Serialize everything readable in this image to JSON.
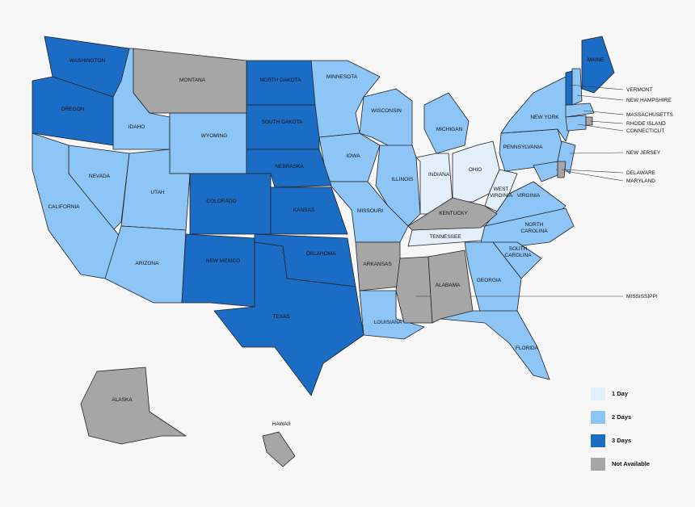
{
  "legend": [
    {
      "label": "1 Day",
      "color": "#e3f0fc",
      "states": [
        "INDIANA",
        "OHIO",
        "WEST\nVIRGINIA",
        "TENNESSEE"
      ]
    },
    {
      "label": "2 Days",
      "color": "#8ec5f7",
      "states": [
        "IDAHO",
        "WYOMING",
        "MINNESOTA",
        "WISCONSIN",
        "MICHIGAN",
        "IOWA",
        "ILLINOIS",
        "PENNSYLVANIA",
        "NEW YORK",
        "NEVADA",
        "CALIFORNIA",
        "UTAH",
        "MISSOURI",
        "VIRGINIA",
        "NORTH\nCAROLINA",
        "ARIZONA",
        "LOUISIANA",
        "GEORGIA",
        "SOUTH\nCAROLINA",
        "FLORIDA",
        "NEW HAMPSHIRE",
        "MASSACHUSETTS",
        "CONNECTICUT",
        "NEW JERSEY",
        "MARYLAND"
      ]
    },
    {
      "label": "3 Days",
      "color": "#1a6cc4",
      "states": [
        "WASHINGTON",
        "OREGON",
        "NORTH DAKOTA",
        "SOUTH DAKOTA",
        "NEBRASKA",
        "COLORADO",
        "KANSAS",
        "NEW MEXICO",
        "OKLAHOMA",
        "TEXAS",
        "MAINE",
        "VERMONT"
      ]
    },
    {
      "label": "Not Available",
      "color": "#a6a6a6",
      "states": [
        "MONTANA",
        "KENTUCKY",
        "ARKANSAS",
        "MISSISSIPPI",
        "ALABAMA",
        "RHODE ISLAND",
        "DELAWARE",
        "ALASKA",
        "HAWAII"
      ]
    }
  ]
}
